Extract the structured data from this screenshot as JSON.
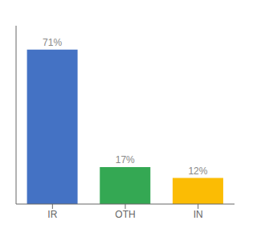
{
  "chart_data": {
    "type": "bar",
    "categories": [
      "IR",
      "OTH",
      "IN"
    ],
    "values": [
      71,
      17,
      12
    ],
    "value_labels": [
      "71%",
      "17%",
      "12%"
    ],
    "data_labels": true,
    "colors": [
      "#4472c4",
      "#34a853",
      "#fbbc04"
    ],
    "ylim": [
      0,
      82
    ],
    "tick_labels": "x"
  }
}
